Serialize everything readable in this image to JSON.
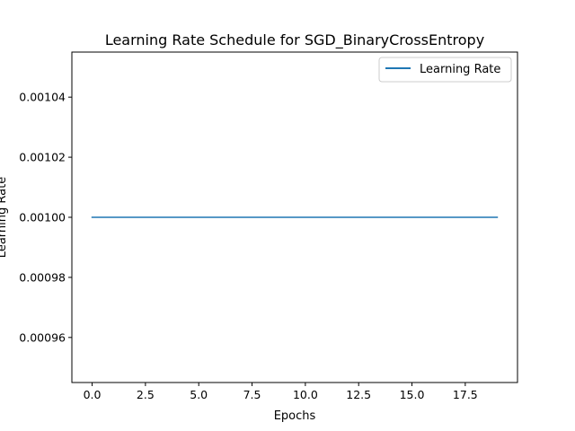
{
  "chart_data": {
    "type": "line",
    "title": "Learning Rate Schedule for SGD_BinaryCrossEntropy",
    "xlabel": "Epochs",
    "ylabel": "Learning Rate",
    "xlim": [
      -0.95,
      19.95
    ],
    "ylim": [
      0.000945,
      0.001055
    ],
    "xticks": [
      0.0,
      2.5,
      5.0,
      7.5,
      10.0,
      12.5,
      15.0,
      17.5
    ],
    "xtick_labels": [
      "0.0",
      "2.5",
      "5.0",
      "7.5",
      "10.0",
      "12.5",
      "15.0",
      "17.5"
    ],
    "yticks": [
      0.00096,
      0.00098,
      0.001,
      0.00102,
      0.00104
    ],
    "ytick_labels": [
      "0.00096",
      "0.00098",
      "0.00100",
      "0.00102",
      "0.00104"
    ],
    "grid": false,
    "legend_position": "top-right",
    "series": [
      {
        "name": "Learning Rate",
        "color": "#1f77b4",
        "x": [
          0,
          1,
          2,
          3,
          4,
          5,
          6,
          7,
          8,
          9,
          10,
          11,
          12,
          13,
          14,
          15,
          16,
          17,
          18,
          19
        ],
        "y": [
          0.001,
          0.001,
          0.001,
          0.001,
          0.001,
          0.001,
          0.001,
          0.001,
          0.001,
          0.001,
          0.001,
          0.001,
          0.001,
          0.001,
          0.001,
          0.001,
          0.001,
          0.001,
          0.001,
          0.001
        ]
      }
    ]
  }
}
